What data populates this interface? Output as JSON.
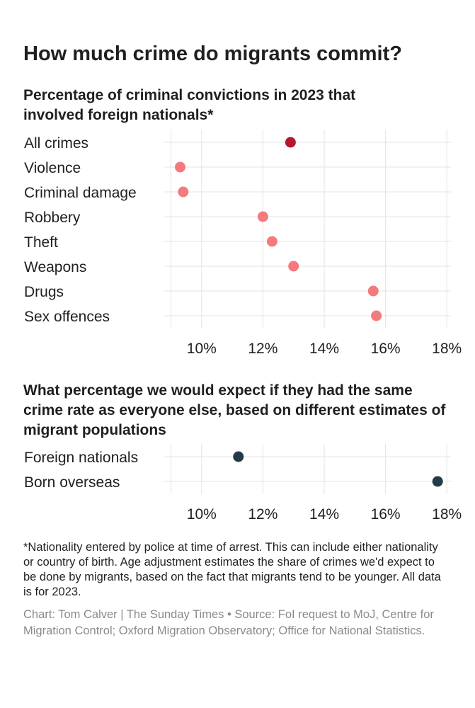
{
  "title": "How much crime do migrants commit?",
  "colors": {
    "highlight": "#b5172b",
    "point": "#f47a7d",
    "dark": "#233a4a",
    "grid": "#e3e3e3"
  },
  "chart_data": [
    {
      "type": "scatter",
      "subtitle": "Percentage of criminal convictions in 2023 that involved foreign nationals*",
      "categories": [
        "All crimes",
        "Violence",
        "Criminal damage",
        "Robbery",
        "Theft",
        "Weapons",
        "Drugs",
        "Sex offences"
      ],
      "values": [
        12.9,
        9.3,
        9.4,
        12.0,
        12.3,
        13.0,
        15.6,
        15.7
      ],
      "highlight": [
        "All crimes"
      ],
      "x_ticks": [
        "10%",
        "12%",
        "14%",
        "16%",
        "18%"
      ],
      "xlim": [
        9,
        18
      ],
      "xlabel": "",
      "ylabel": "",
      "grid": true
    },
    {
      "type": "scatter",
      "subtitle": "What percentage we would expect if they had the same crime rate as everyone else, based on different estimates of migrant populations",
      "categories": [
        "Foreign nationals",
        "Born overseas"
      ],
      "values": [
        11.2,
        17.7
      ],
      "x_ticks": [
        "10%",
        "12%",
        "14%",
        "16%",
        "18%"
      ],
      "xlim": [
        9,
        18
      ],
      "xlabel": "",
      "ylabel": "",
      "grid": true
    }
  ],
  "footnote": "*Nationality entered by police at time of arrest. This can include either nationality or country of birth. Age adjustment estimates the share of crimes we'd expect to be done by migrants, based on the fact that migrants tend to be younger. All data is for 2023.",
  "credit": "Chart: Tom Calver | The Sunday Times • Source: FoI request to MoJ, Centre for Migration Control; Oxford Migration Observatory; Office for National Statistics."
}
